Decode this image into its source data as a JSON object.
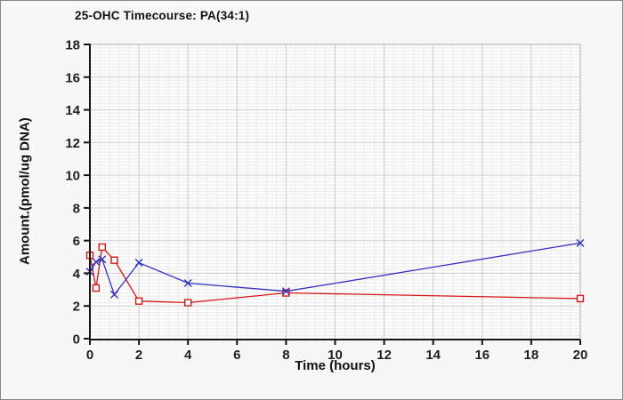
{
  "window": {
    "background": "#f7f7f7",
    "border_color": "#8a8a8a",
    "plot_background": "#fcfcfc"
  },
  "title": "25-OHC Timecourse: PA(34:1)",
  "chart_data": {
    "type": "line",
    "title": "25-OHC Timecourse: PA(34:1)",
    "xlabel": "Time (hours)",
    "ylabel": "Amount.(pmol/ug DNA)",
    "xlim": [
      0,
      20
    ],
    "ylim": [
      0,
      18
    ],
    "xticks": [
      0,
      2,
      4,
      6,
      8,
      10,
      12,
      14,
      16,
      18,
      20
    ],
    "yticks": [
      0,
      2,
      4,
      6,
      8,
      10,
      12,
      14,
      16,
      18
    ],
    "x_minor_step": 0.4,
    "y_minor_step": 0.2,
    "grid": true,
    "legend_position": "none",
    "x": [
      0,
      0.25,
      0.5,
      1,
      2,
      4,
      8,
      20
    ],
    "series": [
      {
        "name": "red-square-series",
        "color": "#d31717",
        "marker": "open-square",
        "values": [
          5.1,
          3.1,
          5.6,
          4.8,
          2.3,
          2.2,
          2.8,
          2.45
        ]
      },
      {
        "name": "blue-cross-series",
        "color": "#3232be",
        "marker": "x-cross",
        "values": [
          4.1,
          4.7,
          4.85,
          2.7,
          4.65,
          3.4,
          2.9,
          5.85
        ]
      }
    ],
    "axis_color": "#141414",
    "major_grid_color": "#cbcbcb",
    "minor_grid_color": "#ececec",
    "frame_color": "#b8b8b8",
    "tick_label_color": "#1f1f1f"
  }
}
